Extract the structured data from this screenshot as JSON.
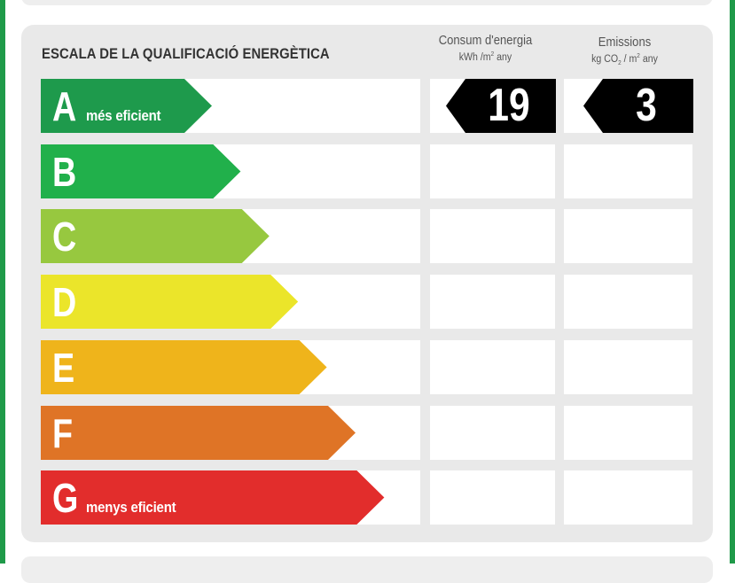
{
  "title": "ESCALA DE LA QUALIFICACIÓ ENERGÈTICA",
  "columns": {
    "consum": {
      "title": "Consum d'energia",
      "unit_pre": "kWh /m",
      "unit_sup": "2",
      "unit_post": " any"
    },
    "emissions": {
      "title": "Emissions",
      "unit_pre": "kg CO",
      "unit_sub": "2",
      "unit_mid": " / m",
      "unit_sup": "2",
      "unit_post": " any"
    }
  },
  "classes": [
    {
      "letter": "A",
      "label": "més eficient",
      "color": "#1e9a4c"
    },
    {
      "letter": "B",
      "label": "",
      "color": "#21b04b"
    },
    {
      "letter": "C",
      "label": "",
      "color": "#97c83f"
    },
    {
      "letter": "D",
      "label": "",
      "color": "#ebe52a"
    },
    {
      "letter": "E",
      "label": "",
      "color": "#efb41b"
    },
    {
      "letter": "F",
      "label": "",
      "color": "#df7426"
    },
    {
      "letter": "G",
      "label": "menys eficient",
      "color": "#e22d2c"
    }
  ],
  "rating": {
    "class": "A",
    "consumption": "19",
    "emissions": "3",
    "badge_color": "#000000"
  },
  "frame_color": "#1f9a49"
}
